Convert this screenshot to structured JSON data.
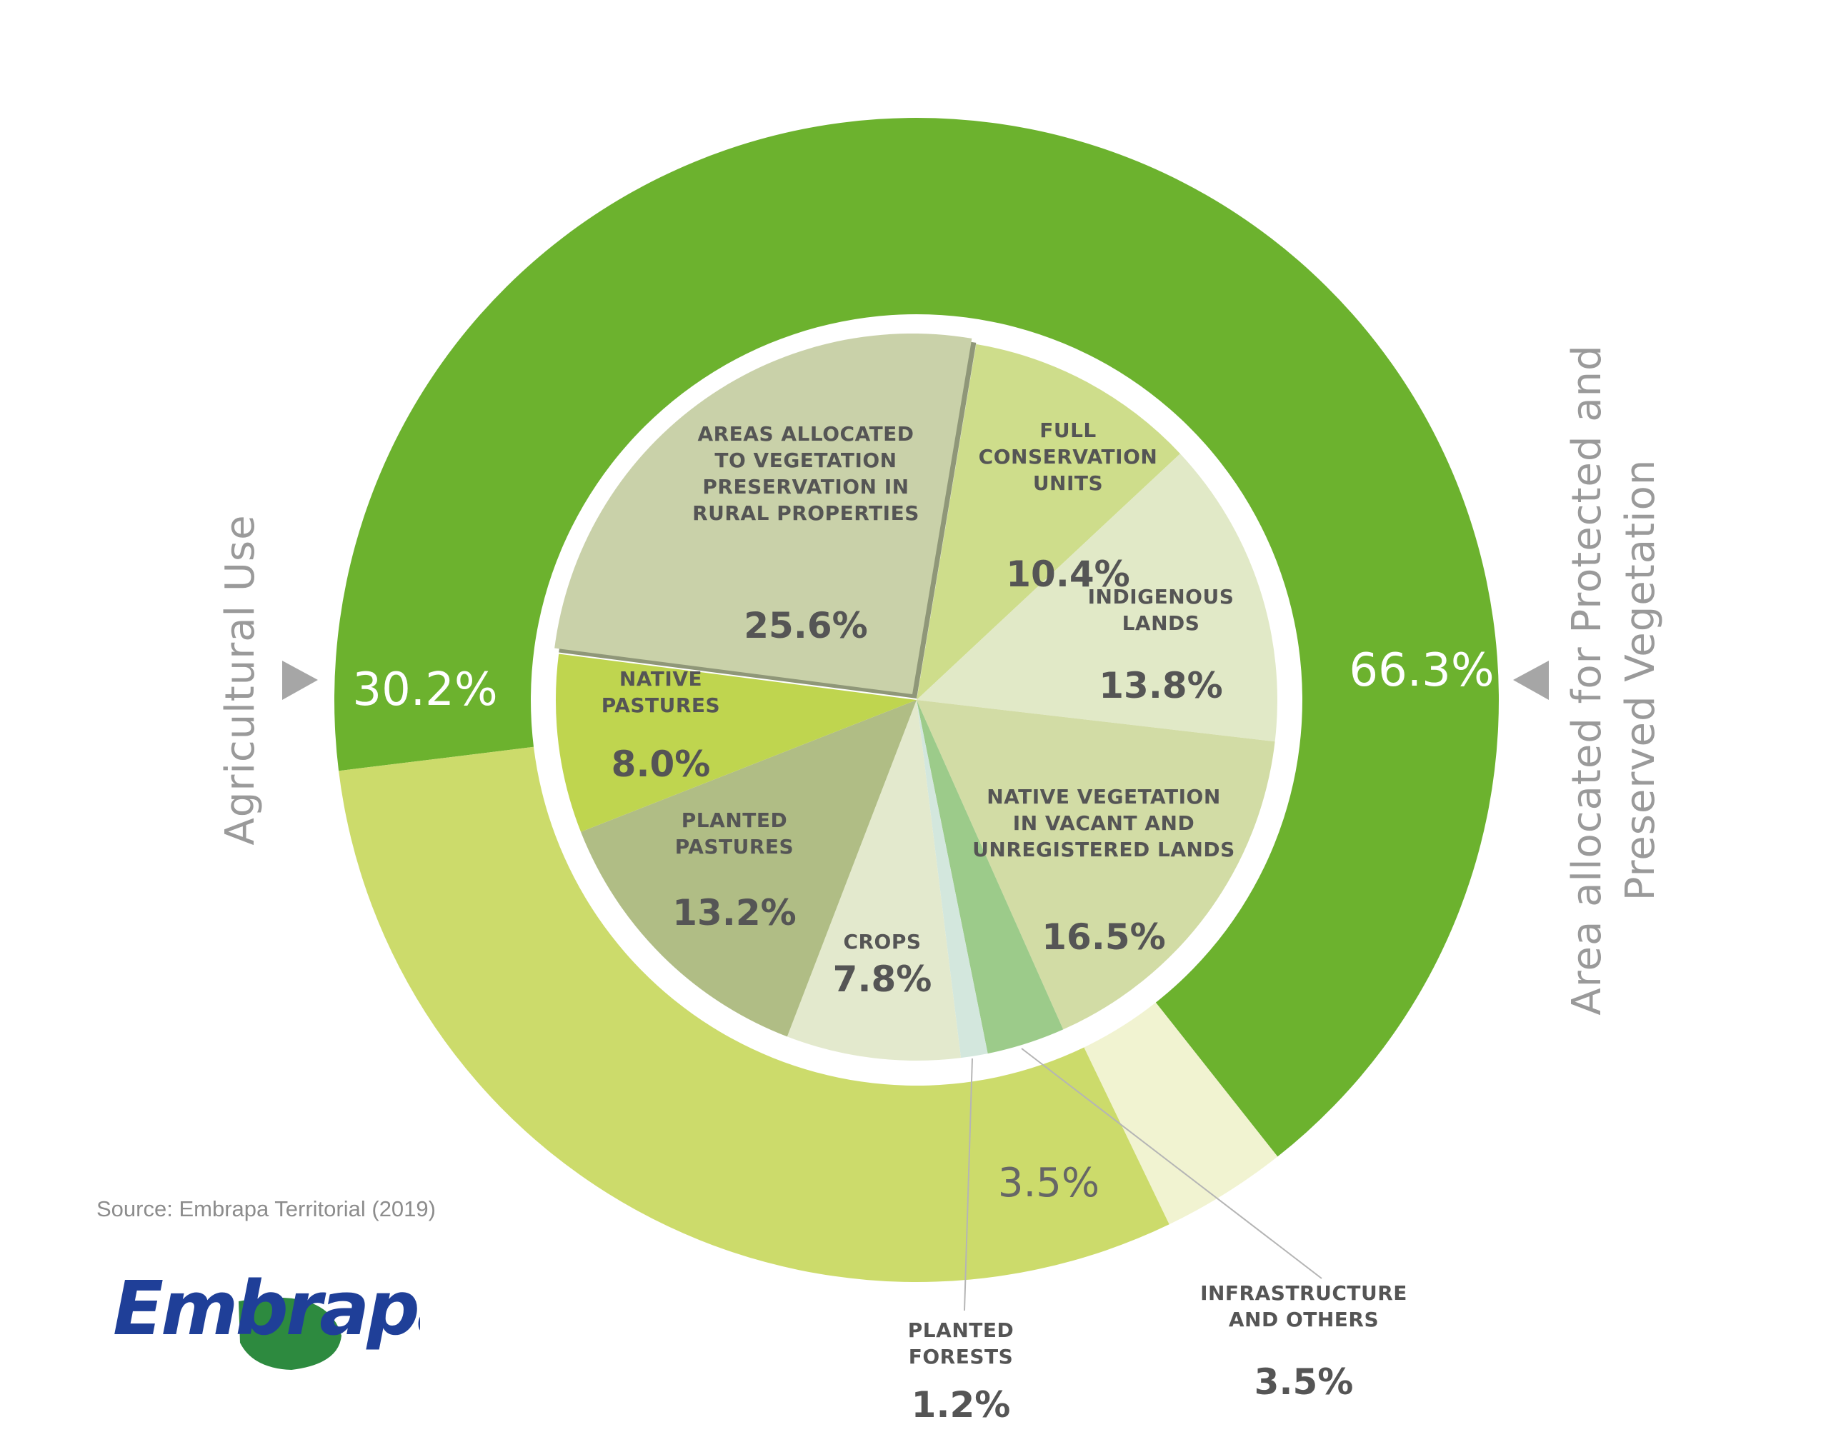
{
  "chart_data": {
    "type": "pie",
    "outer_ring": {
      "type": "donut",
      "segments": [
        {
          "label": "Area allocated for Protected and Preserved Vegetation",
          "value": 66.3,
          "label_text": "66.3%",
          "color": "#6cb22e"
        },
        {
          "label": "",
          "value": 3.5,
          "label_text": "3.5%",
          "color": "#f1f3d1"
        },
        {
          "label": "Agricultural Use",
          "value": 30.2,
          "label_text": "30.2%",
          "color": "#ccdb6b"
        }
      ]
    },
    "inner_pie": {
      "slices": [
        {
          "label_lines": [
            "FULL",
            "CONSERVATION",
            "UNITS"
          ],
          "value": 10.4,
          "value_text": "10.4%",
          "color": "#cedd8b"
        },
        {
          "label_lines": [
            "INDIGENOUS",
            "LANDS"
          ],
          "value": 13.8,
          "value_text": "13.8%",
          "color": "#e1e9c7"
        },
        {
          "label_lines": [
            "NATIVE VEGETATION",
            "IN VACANT AND",
            "UNREGISTERED LANDS"
          ],
          "value": 16.5,
          "value_text": "16.5%",
          "color": "#d2dca5"
        },
        {
          "label_lines": [
            "INFRASTRUCTURE",
            "AND OTHERS"
          ],
          "value": 3.5,
          "value_text": "3.5%",
          "color": "#9ccb8a"
        },
        {
          "label_lines": [
            "PLANTED",
            "FORESTS"
          ],
          "value": 1.2,
          "value_text": "1.2%",
          "color": "#d3e7dd"
        },
        {
          "label_lines": [
            "CROPS"
          ],
          "value": 7.8,
          "value_text": "7.8%",
          "color": "#e3e9cd"
        },
        {
          "label_lines": [
            "PLANTED",
            "PASTURES"
          ],
          "value": 13.2,
          "value_text": "13.2%",
          "color": "#b0bd85"
        },
        {
          "label_lines": [
            "NATIVE",
            "PASTURES"
          ],
          "value": 8.0,
          "value_text": "8.0%",
          "color": "#bfd54f"
        },
        {
          "label_lines": [
            "AREAS ALLOCATED",
            "TO VEGETATION",
            "PRESERVATION IN",
            "RURAL PROPERTIES"
          ],
          "value": 25.6,
          "value_text": "25.6%",
          "color": "#c9d1a9",
          "exploded": true
        }
      ]
    },
    "side_labels": {
      "left": "Agricultural Use",
      "right_lines": [
        "Area allocated for Protected and",
        "Preserved Vegetation"
      ]
    },
    "arrow_color": "#a6a6a6"
  },
  "source": "Source: Embrapa Territorial (2019)",
  "logo": {
    "text": "Embrapa",
    "text_color": "#1f3f98",
    "leaf_color": "#2d8a3f"
  }
}
